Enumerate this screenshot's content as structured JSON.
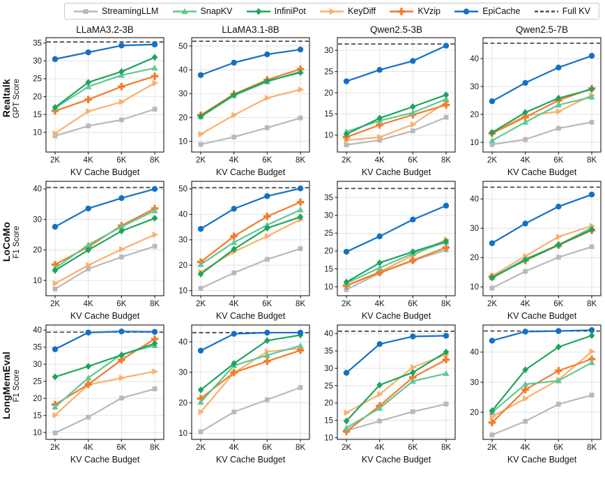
{
  "legend": {
    "items": [
      {
        "label": "StreamingLLM",
        "color": "#b9b9b9",
        "marker": "square"
      },
      {
        "label": "SnapKV",
        "color": "#5fc894",
        "marker": "triangle-up"
      },
      {
        "label": "InfiniPot",
        "color": "#1fa45e",
        "marker": "diamond"
      },
      {
        "label": "KeyDiff",
        "color": "#fbaf6d",
        "marker": "triangle-right"
      },
      {
        "label": "KVzip",
        "color": "#f47b2a",
        "marker": "plus"
      },
      {
        "label": "EpiCache",
        "color": "#1470c4",
        "marker": "circle"
      },
      {
        "label": "Full KV",
        "color": "#4d4d4d",
        "marker": "dash"
      }
    ]
  },
  "axis": {
    "xlabel": "KV Cache Budget"
  },
  "rows": [
    {
      "label": "Realtalk",
      "ylabel": "GPT Score"
    },
    {
      "label": "LoCoMo",
      "ylabel": "F1 Score"
    },
    {
      "label": "LongMemEval",
      "ylabel": "F1 Score"
    }
  ],
  "columns": [
    "LLaMA3.2-3B",
    "LLaMA3.1-8B",
    "Qwen2.5-3B",
    "Qwen2.5-7B"
  ],
  "chart_data": [
    {
      "type": "line",
      "row": "Realtalk",
      "model": "LLaMA3.2-3B",
      "x": [
        "2K",
        "4K",
        "6K",
        "8K"
      ],
      "ylim": [
        4.5,
        36.5
      ],
      "yticks": [
        10,
        15,
        20,
        25,
        30,
        35
      ],
      "full_kv": 35.3,
      "series": [
        {
          "name": "StreamingLLM",
          "values": [
            9.0,
            11.8,
            13.5,
            16.5
          ]
        },
        {
          "name": "SnapKV",
          "values": [
            16.8,
            22.8,
            26.0,
            28.0
          ]
        },
        {
          "name": "InfiniPot",
          "values": [
            17.0,
            24.0,
            27.0,
            31.0
          ]
        },
        {
          "name": "KeyDiff",
          "values": [
            9.7,
            15.9,
            18.5,
            23.8
          ]
        },
        {
          "name": "KVzip",
          "values": [
            16.0,
            19.2,
            22.8,
            25.7
          ]
        },
        {
          "name": "EpiCache",
          "values": [
            30.5,
            32.4,
            34.3,
            34.6
          ]
        }
      ]
    },
    {
      "type": "line",
      "row": "Realtalk",
      "model": "LLaMA3.1-8B",
      "x": [
        "2K",
        "4K",
        "6K",
        "8K"
      ],
      "ylim": [
        5.5,
        53.5
      ],
      "yticks": [
        10,
        20,
        30,
        40,
        50
      ],
      "full_kv": 52.0,
      "series": [
        {
          "name": "StreamingLLM",
          "values": [
            8.7,
            11.8,
            15.7,
            19.8
          ]
        },
        {
          "name": "SnapKV",
          "values": [
            20.3,
            29.2,
            35.0,
            39.3
          ]
        },
        {
          "name": "InfiniPot",
          "values": [
            20.5,
            29.5,
            35.3,
            38.9
          ]
        },
        {
          "name": "KeyDiff",
          "values": [
            13.0,
            21.0,
            28.2,
            31.7
          ]
        },
        {
          "name": "KVzip",
          "values": [
            21.0,
            29.8,
            35.8,
            40.3
          ]
        },
        {
          "name": "EpiCache",
          "values": [
            37.8,
            43.0,
            46.5,
            48.5
          ]
        }
      ]
    },
    {
      "type": "line",
      "row": "Realtalk",
      "model": "Qwen2.5-3B",
      "x": [
        "2K",
        "4K",
        "6K",
        "8K"
      ],
      "ylim": [
        6.0,
        33.0
      ],
      "yticks": [
        10,
        15,
        20,
        25,
        30
      ],
      "full_kv": 31.5,
      "series": [
        {
          "name": "StreamingLLM",
          "values": [
            7.7,
            8.8,
            11.0,
            14.2
          ]
        },
        {
          "name": "SnapKV",
          "values": [
            10.8,
            13.4,
            15.3,
            18.5
          ]
        },
        {
          "name": "InfiniPot",
          "values": [
            10.2,
            14.0,
            16.7,
            19.5
          ]
        },
        {
          "name": "KeyDiff",
          "values": [
            8.8,
            9.5,
            12.5,
            17.8
          ]
        },
        {
          "name": "KVzip",
          "values": [
            9.5,
            12.4,
            14.8,
            17.1
          ]
        },
        {
          "name": "EpiCache",
          "values": [
            22.7,
            25.4,
            27.5,
            31.1
          ]
        }
      ]
    },
    {
      "type": "line",
      "row": "Realtalk",
      "model": "Qwen2.5-7B",
      "x": [
        "2K",
        "4K",
        "6K",
        "8K"
      ],
      "ylim": [
        6.5,
        47.5
      ],
      "yticks": [
        10,
        20,
        30,
        40
      ],
      "full_kv": 45.5,
      "series": [
        {
          "name": "StreamingLLM",
          "values": [
            9.2,
            11.0,
            15.0,
            17.2
          ]
        },
        {
          "name": "SnapKV",
          "values": [
            10.6,
            17.2,
            23.4,
            26.2
          ]
        },
        {
          "name": "InfiniPot",
          "values": [
            13.5,
            20.7,
            25.8,
            29.0
          ]
        },
        {
          "name": "KeyDiff",
          "values": [
            13.3,
            19.5,
            21.0,
            26.9
          ]
        },
        {
          "name": "KVzip",
          "values": [
            13.2,
            19.0,
            25.0,
            29.3
          ]
        },
        {
          "name": "EpiCache",
          "values": [
            24.7,
            31.3,
            36.8,
            41.0
          ]
        }
      ]
    },
    {
      "type": "line",
      "row": "LoCoMo",
      "model": "LLaMA3.2-3B",
      "x": [
        "2K",
        "4K",
        "6K",
        "8K"
      ],
      "ylim": [
        5.0,
        42.5
      ],
      "yticks": [
        10,
        20,
        30,
        40
      ],
      "full_kv": 40.5,
      "series": [
        {
          "name": "StreamingLLM",
          "values": [
            7.2,
            13.8,
            17.7,
            21.2
          ]
        },
        {
          "name": "SnapKV",
          "values": [
            14.0,
            21.7,
            27.6,
            32.9
          ]
        },
        {
          "name": "InfiniPot",
          "values": [
            13.3,
            20.0,
            26.2,
            30.4
          ]
        },
        {
          "name": "KeyDiff",
          "values": [
            9.0,
            15.0,
            20.2,
            25.0
          ]
        },
        {
          "name": "KVzip",
          "values": [
            15.2,
            21.0,
            28.0,
            33.6
          ]
        },
        {
          "name": "EpiCache",
          "values": [
            27.6,
            33.6,
            37.0,
            40.0
          ]
        }
      ]
    },
    {
      "type": "line",
      "row": "LoCoMo",
      "model": "LLaMA3.1-8B",
      "x": [
        "2K",
        "4K",
        "6K",
        "8K"
      ],
      "ylim": [
        8.0,
        53.0
      ],
      "yticks": [
        10,
        20,
        30,
        40,
        50
      ],
      "full_kv": 50.5,
      "series": [
        {
          "name": "StreamingLLM",
          "values": [
            10.9,
            17.0,
            22.3,
            26.5
          ]
        },
        {
          "name": "SnapKV",
          "values": [
            20.3,
            29.0,
            35.8,
            41.8
          ]
        },
        {
          "name": "InfiniPot",
          "values": [
            16.5,
            26.3,
            34.6,
            39.0
          ]
        },
        {
          "name": "KeyDiff",
          "values": [
            17.3,
            25.3,
            31.4,
            38.0
          ]
        },
        {
          "name": "KVzip",
          "values": [
            21.3,
            31.4,
            39.2,
            44.8
          ]
        },
        {
          "name": "EpiCache",
          "values": [
            34.3,
            42.2,
            47.2,
            50.2
          ]
        }
      ]
    },
    {
      "type": "line",
      "row": "LoCoMo",
      "model": "Qwen2.5-3B",
      "x": [
        "2K",
        "4K",
        "6K",
        "8K"
      ],
      "ylim": [
        7.5,
        39.5
      ],
      "yticks": [
        10,
        15,
        20,
        25,
        30,
        35
      ],
      "full_kv": 37.5,
      "series": [
        {
          "name": "StreamingLLM",
          "values": [
            9.2,
            13.8,
            17.3,
            20.3
          ]
        },
        {
          "name": "SnapKV",
          "values": [
            11.0,
            15.3,
            19.3,
            22.5
          ]
        },
        {
          "name": "InfiniPot",
          "values": [
            11.3,
            16.7,
            19.8,
            22.7
          ]
        },
        {
          "name": "KeyDiff",
          "values": [
            10.4,
            14.2,
            18.8,
            23.2
          ]
        },
        {
          "name": "KVzip",
          "values": [
            10.3,
            14.0,
            17.4,
            21.0
          ]
        },
        {
          "name": "EpiCache",
          "values": [
            19.8,
            24.1,
            28.8,
            32.7
          ]
        }
      ]
    },
    {
      "type": "line",
      "row": "LoCoMo",
      "model": "Qwen2.5-7B",
      "x": [
        "2K",
        "4K",
        "6K",
        "8K"
      ],
      "ylim": [
        7.0,
        46.0
      ],
      "yticks": [
        10,
        20,
        30,
        40
      ],
      "full_kv": 44.0,
      "series": [
        {
          "name": "StreamingLLM",
          "values": [
            9.6,
            15.3,
            20.1,
            23.7
          ]
        },
        {
          "name": "SnapKV",
          "values": [
            13.2,
            19.5,
            24.3,
            30.2
          ]
        },
        {
          "name": "InfiniPot",
          "values": [
            13.1,
            19.2,
            24.4,
            29.5
          ]
        },
        {
          "name": "KeyDiff",
          "values": [
            13.7,
            20.5,
            27.1,
            30.8
          ]
        },
        {
          "name": "KVzip",
          "values": [
            13.5,
            19.0,
            24.2,
            29.3
          ]
        },
        {
          "name": "EpiCache",
          "values": [
            24.9,
            31.6,
            37.4,
            41.5
          ]
        }
      ]
    },
    {
      "type": "line",
      "row": "LongMemEval",
      "model": "LLaMA3.2-3B",
      "x": [
        "2K",
        "4K",
        "6K",
        "8K"
      ],
      "ylim": [
        8.0,
        41.5
      ],
      "yticks": [
        10,
        15,
        20,
        25,
        30,
        35,
        40
      ],
      "full_kv": 39.4,
      "series": [
        {
          "name": "StreamingLLM",
          "values": [
            9.9,
            14.5,
            20.1,
            22.8
          ]
        },
        {
          "name": "SnapKV",
          "values": [
            17.5,
            26.0,
            32.9,
            35.5
          ]
        },
        {
          "name": "InfiniPot",
          "values": [
            26.3,
            29.4,
            32.7,
            36.1
          ]
        },
        {
          "name": "KeyDiff",
          "values": [
            15.1,
            24.0,
            26.0,
            27.9
          ]
        },
        {
          "name": "KVzip",
          "values": [
            18.2,
            24.1,
            31.3,
            37.4
          ]
        },
        {
          "name": "EpiCache",
          "values": [
            34.4,
            39.3,
            39.6,
            39.5
          ]
        }
      ]
    },
    {
      "type": "line",
      "row": "LongMemEval",
      "model": "LLaMA3.1-8B",
      "x": [
        "2K",
        "4K",
        "6K",
        "8K"
      ],
      "ylim": [
        8.0,
        45.5
      ],
      "yticks": [
        10,
        20,
        30,
        40
      ],
      "full_kv": 43.0,
      "series": [
        {
          "name": "StreamingLLM",
          "values": [
            10.5,
            17.0,
            21.0,
            25.0
          ]
        },
        {
          "name": "SnapKV",
          "values": [
            20.2,
            32.2,
            35.6,
            38.7
          ]
        },
        {
          "name": "InfiniPot",
          "values": [
            24.2,
            32.9,
            40.4,
            42.2
          ]
        },
        {
          "name": "KeyDiff",
          "values": [
            17.0,
            29.8,
            36.8,
            37.8
          ]
        },
        {
          "name": "KVzip",
          "values": [
            21.4,
            29.9,
            33.6,
            37.2
          ]
        },
        {
          "name": "EpiCache",
          "values": [
            37.1,
            42.6,
            43.0,
            43.0
          ]
        }
      ]
    },
    {
      "type": "line",
      "row": "LongMemEval",
      "model": "Qwen2.5-3B",
      "x": [
        "2K",
        "4K",
        "6K",
        "8K"
      ],
      "ylim": [
        9.5,
        42.5
      ],
      "yticks": [
        10,
        15,
        20,
        25,
        30,
        35,
        40
      ],
      "full_kv": 40.7,
      "series": [
        {
          "name": "StreamingLLM",
          "values": [
            12.0,
            14.8,
            17.5,
            19.7
          ]
        },
        {
          "name": "SnapKV",
          "values": [
            12.8,
            18.5,
            26.3,
            28.5
          ]
        },
        {
          "name": "InfiniPot",
          "values": [
            14.8,
            25.2,
            28.8,
            34.7
          ]
        },
        {
          "name": "KeyDiff",
          "values": [
            17.2,
            22.5,
            30.3,
            34.0
          ]
        },
        {
          "name": "KVzip",
          "values": [
            11.8,
            19.2,
            27.4,
            32.5
          ]
        },
        {
          "name": "EpiCache",
          "values": [
            28.7,
            37.0,
            39.2,
            39.4
          ]
        }
      ]
    },
    {
      "type": "line",
      "row": "LongMemEval",
      "model": "Qwen2.5-7B",
      "x": [
        "2K",
        "4K",
        "6K",
        "8K"
      ],
      "ylim": [
        11.0,
        49.0
      ],
      "yticks": [
        20,
        30,
        40
      ],
      "full_kv": 47.0,
      "series": [
        {
          "name": "StreamingLLM",
          "values": [
            12.5,
            17.0,
            22.7,
            25.7
          ]
        },
        {
          "name": "SnapKV",
          "values": [
            20.0,
            29.3,
            30.5,
            36.5
          ]
        },
        {
          "name": "InfiniPot",
          "values": [
            20.5,
            34.1,
            41.7,
            45.5
          ]
        },
        {
          "name": "KeyDiff",
          "values": [
            18.5,
            24.6,
            30.8,
            40.2
          ]
        },
        {
          "name": "KVzip",
          "values": [
            16.6,
            27.5,
            33.8,
            37.7
          ]
        },
        {
          "name": "EpiCache",
          "values": [
            43.8,
            46.8,
            47.0,
            47.3
          ]
        }
      ]
    }
  ]
}
